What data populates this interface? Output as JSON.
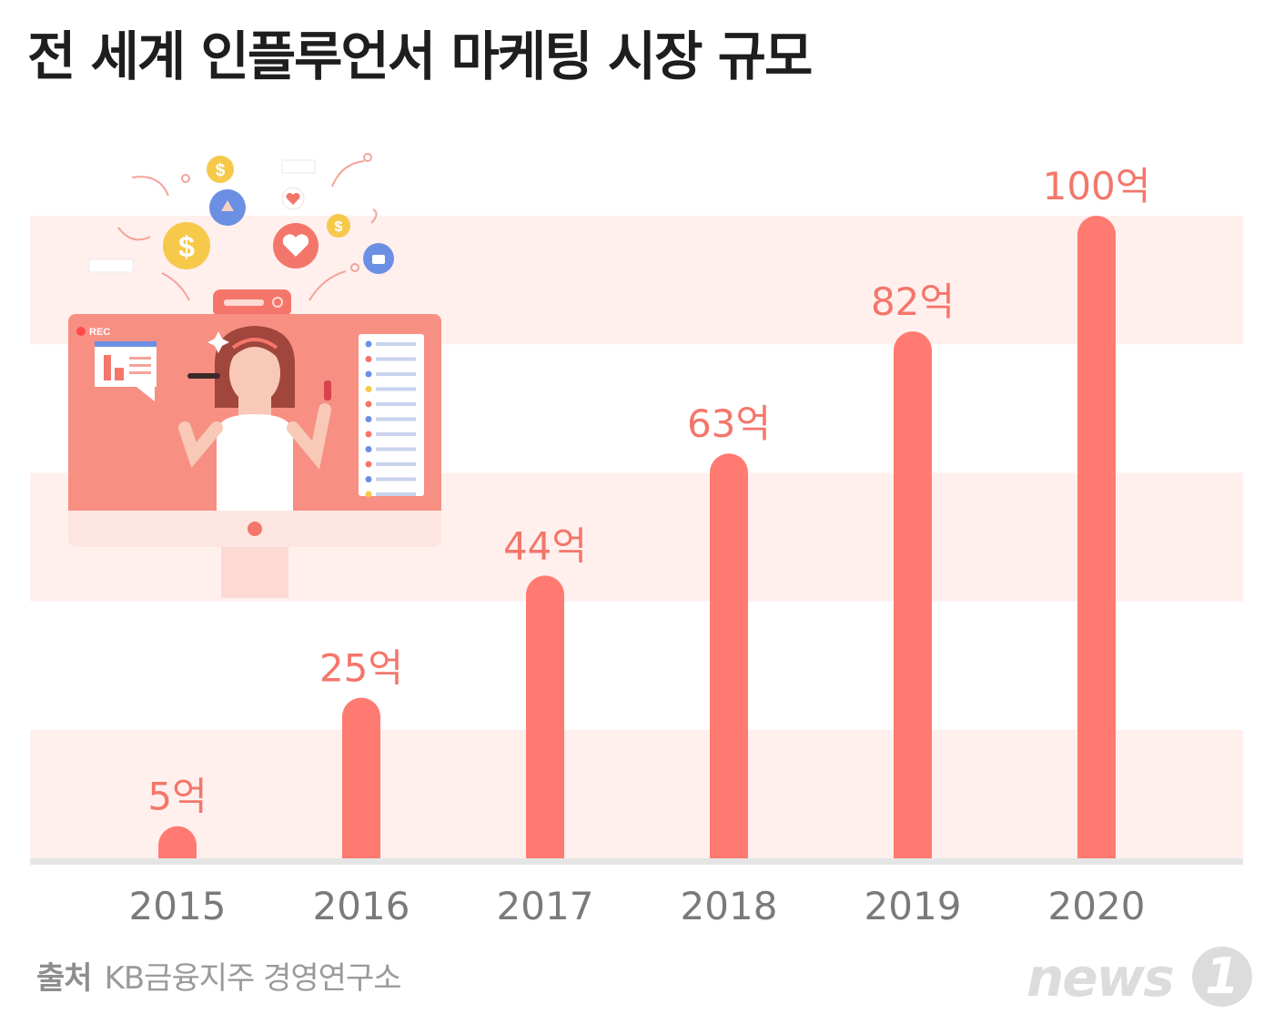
{
  "chart_data": {
    "type": "bar",
    "title": "전 세계 인플루언서 마케팅 시장 규모",
    "categories": [
      "2015",
      "2016",
      "2017",
      "2018",
      "2019",
      "2020"
    ],
    "values": [
      5,
      25,
      44,
      63,
      82,
      100
    ],
    "data_labels": [
      "5억",
      "25억",
      "44억",
      "63억",
      "82억",
      "100억"
    ],
    "unit": "억",
    "xlabel": "",
    "ylabel": "",
    "ylim": [
      0,
      100
    ],
    "grid": false,
    "legend": "none",
    "bar_color": "#ff7a70",
    "label_color": "#f4766b",
    "band_color": "#fff0ee"
  },
  "source": {
    "label": "출처",
    "text": "KB금융지주 경영연구소"
  },
  "logo": {
    "text": "news",
    "badge": "1"
  },
  "illustration": {
    "rec_label": "REC"
  }
}
